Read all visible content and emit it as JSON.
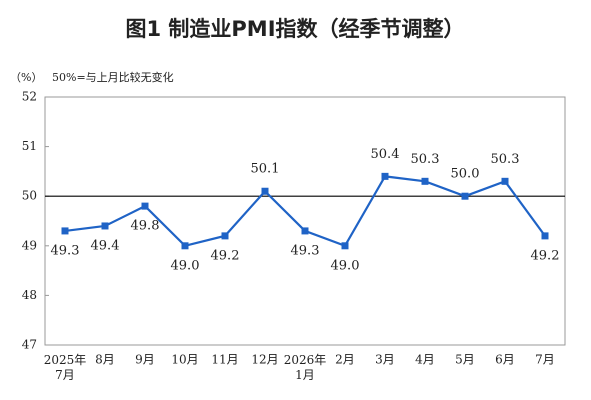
{
  "chart_data": {
    "type": "line",
    "title": "图1 制造业PMI指数（经季节调整）",
    "y_label": "（%）",
    "annotation": "50%=与上月比较无变化",
    "categories": [
      "2025年\n7月",
      "8月",
      "9月",
      "10月",
      "11月",
      "12月",
      "2026年\n1月",
      "2月",
      "3月",
      "4月",
      "5月",
      "6月",
      "7月"
    ],
    "values": [
      49.3,
      49.4,
      49.8,
      49.0,
      49.2,
      50.1,
      49.3,
      49.0,
      50.4,
      50.3,
      50.0,
      50.3,
      49.2
    ],
    "value_labels": [
      "49.3",
      "49.4",
      "49.8",
      "49.0",
      "49.2",
      "50.1",
      "49.3",
      "49.0",
      "50.4",
      "50.3",
      "50.0",
      "50.3",
      "49.2"
    ],
    "color": "#1f63c6",
    "reference_line": 50,
    "ylim": [
      47,
      52
    ],
    "yticks": [
      47,
      48,
      49,
      50,
      51,
      52
    ]
  }
}
